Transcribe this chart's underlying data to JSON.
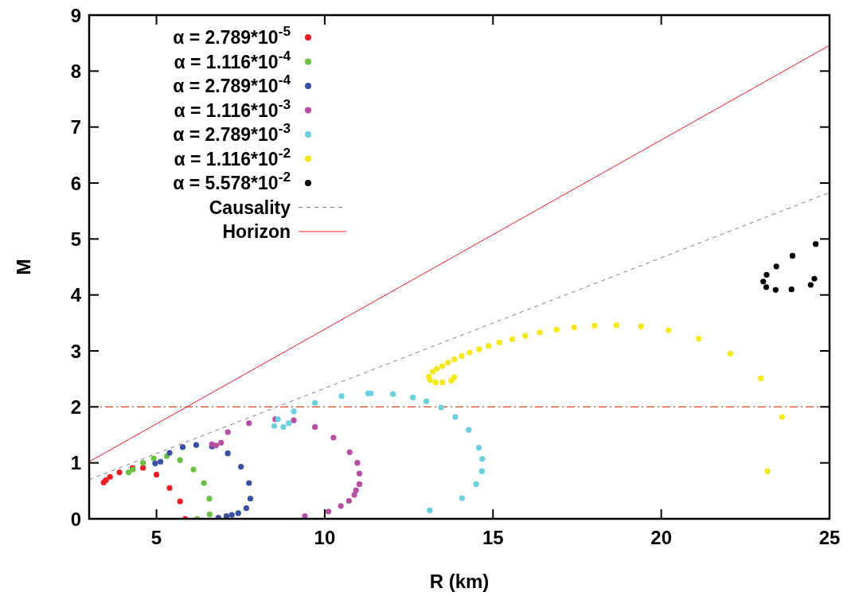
{
  "chart_data": {
    "type": "scatter",
    "xlabel": "R (km)",
    "ylabel": "M",
    "xlim": [
      3,
      25
    ],
    "ylim": [
      0,
      9
    ],
    "xticks": [
      5,
      10,
      15,
      20,
      25
    ],
    "yticks": [
      0,
      1,
      2,
      3,
      4,
      5,
      6,
      7,
      8,
      9
    ],
    "grid": false,
    "legend": "top left",
    "marker": "circle",
    "ref_lines": [
      {
        "axis": "y",
        "value": 2,
        "color": "#d9472b",
        "line_style": "dashdot"
      }
    ],
    "series": [
      {
        "name": "α = 2.789*10$^{-5}$",
        "color": "#ee1c24",
        "x": [
          3.43,
          3.5,
          3.62,
          3.9,
          4.29,
          4.6,
          5.0,
          5.39,
          5.7,
          5.85
        ],
        "values": [
          0.65,
          0.69,
          0.75,
          0.83,
          0.91,
          0.91,
          0.79,
          0.55,
          0.31,
          0
        ]
      },
      {
        "name": "α = 1.116*10$^{-4}$",
        "color": "#6abf45",
        "x": [
          4.17,
          4.3,
          4.6,
          4.92,
          5.31,
          5.7,
          6.1,
          6.41,
          6.57,
          6.58,
          6.21
        ],
        "values": [
          0.83,
          0.88,
          1.0,
          1.08,
          1.12,
          1.05,
          0.88,
          0.64,
          0.36,
          0.08,
          0
        ]
      },
      {
        "name": "α = 2.789*10$^{-4}$",
        "color": "#3a4fa0",
        "x": [
          4.96,
          5.12,
          5.39,
          5.78,
          6.18,
          6.65,
          7.12,
          7.51,
          7.75,
          7.79,
          7.67,
          7.43,
          7.24,
          7.08,
          6.84
        ],
        "values": [
          0.99,
          1.02,
          1.18,
          1.28,
          1.32,
          1.29,
          1.17,
          0.93,
          0.64,
          0.36,
          0.19,
          0.1,
          0.07,
          0.05,
          0.02
        ]
      },
      {
        "name": "α = 1.116*10$^{-3}$",
        "color": "#b44ea0",
        "x": [
          6.92,
          6.77,
          6.65,
          7.12,
          7.75,
          8.53,
          9.08,
          9.71,
          10.26,
          10.74,
          10.97,
          11.03,
          11.03,
          10.93,
          10.88,
          10.72,
          10.48,
          10.11,
          9.41
        ],
        "values": [
          1.36,
          1.31,
          1.33,
          1.55,
          1.71,
          1.78,
          1.76,
          1.64,
          1.45,
          1.19,
          1.0,
          0.81,
          0.62,
          0.51,
          0.43,
          0.32,
          0.23,
          0.13,
          0.05
        ]
      },
      {
        "name": "α = 2.789*10$^{-3}$",
        "color": "#6bcfdc",
        "x": [
          8.93,
          8.77,
          8.5,
          8.61,
          9.08,
          9.71,
          10.5,
          11.29,
          11.37,
          12.03,
          12.62,
          13.02,
          13.46,
          13.88,
          14.28,
          14.58,
          14.68,
          14.67,
          14.5,
          14.08,
          13.12
        ],
        "values": [
          1.71,
          1.64,
          1.66,
          1.78,
          1.92,
          2.07,
          2.19,
          2.24,
          2.24,
          2.23,
          2.17,
          2.1,
          1.99,
          1.82,
          1.59,
          1.27,
          1.07,
          0.85,
          0.62,
          0.37,
          0.15
        ]
      },
      {
        "name": "α = 1.116*10$^{-2}$",
        "color": "#f3e81a",
        "x": [
          13.85,
          13.76,
          13.5,
          13.29,
          13.13,
          13.09,
          13.21,
          13.33,
          13.49,
          13.66,
          13.85,
          14.07,
          14.3,
          14.59,
          14.87,
          15.19,
          15.57,
          15.96,
          16.39,
          16.89,
          17.41,
          18.02,
          18.67,
          19.4,
          20.22,
          21.11,
          22.05,
          22.96,
          23.59,
          23.16
        ],
        "values": [
          2.53,
          2.47,
          2.44,
          2.44,
          2.48,
          2.54,
          2.63,
          2.68,
          2.73,
          2.79,
          2.85,
          2.91,
          2.97,
          3.03,
          3.09,
          3.15,
          3.21,
          3.27,
          3.33,
          3.38,
          3.42,
          3.45,
          3.46,
          3.44,
          3.37,
          3.22,
          2.95,
          2.51,
          1.82,
          0.85
        ]
      },
      {
        "name": "α = 5.578*10$^{-2}$",
        "color": "#000000",
        "x": [
          24.59,
          23.9,
          23.42,
          23.13,
          23.03,
          23.12,
          23.4,
          23.87,
          24.44,
          24.55
        ],
        "values": [
          4.91,
          4.7,
          4.51,
          4.36,
          4.24,
          4.14,
          4.09,
          4.1,
          4.18,
          4.29
        ]
      },
      {
        "name": "Causality",
        "type": "line",
        "marker": "none",
        "line_style": "dashed",
        "color": "#808080",
        "x": [
          3,
          25
        ],
        "values": [
          0.7,
          5.83
        ]
      },
      {
        "name": "Horizon",
        "type": "line",
        "marker": "none",
        "line_style": "solid",
        "color": "#ee1c24",
        "x": [
          3,
          25
        ],
        "values": [
          1.02,
          8.46
        ]
      }
    ]
  }
}
